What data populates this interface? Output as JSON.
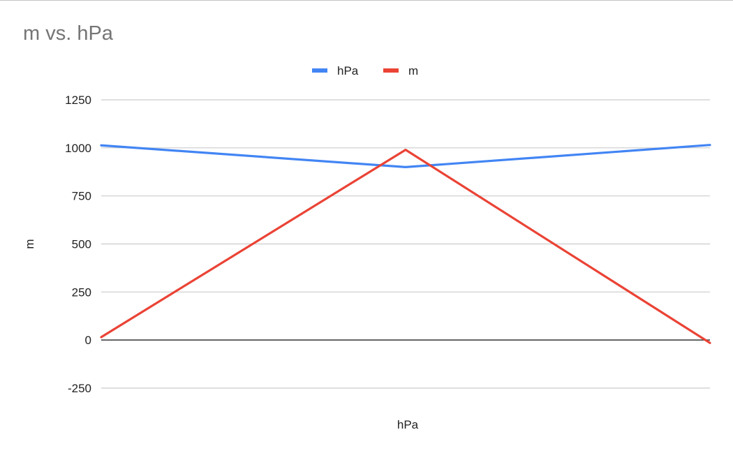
{
  "chart_data": {
    "type": "line",
    "title": "m vs. hPa",
    "xlabel": "hPa",
    "ylabel": "m",
    "x": [
      "",
      "",
      ""
    ],
    "series": [
      {
        "name": "hPa",
        "color": "#4285f4",
        "values": [
          1013,
          900,
          1015
        ]
      },
      {
        "name": "m",
        "color": "#ea4335",
        "values": [
          15,
          990,
          -15
        ]
      }
    ],
    "ylim": [
      -250,
      1250
    ],
    "yticks": [
      1250,
      1000,
      750,
      500,
      250,
      0,
      -250
    ],
    "ytick_labels": [
      "1250",
      "1000",
      "750",
      "500",
      "250",
      "0",
      "-250"
    ],
    "grid": true,
    "legend": "top"
  }
}
